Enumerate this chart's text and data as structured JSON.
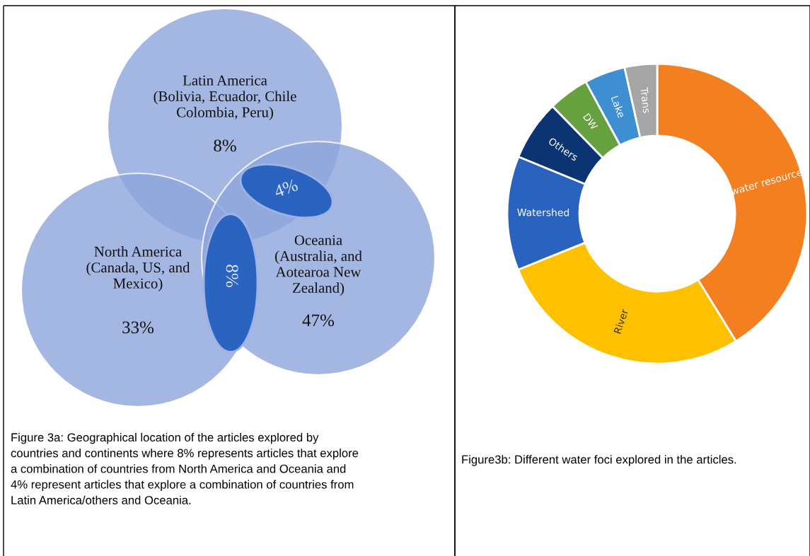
{
  "chart_data": [
    {
      "type": "other",
      "categories": [
        "Latin America\n(Bolivia, Ecuador, Chile\nColombia, Peru)",
        "North America\n(Canada, US, and\nMexico)",
        "Oceania\n(Australia, and\nAotearoa New\nZealand)",
        null,
        null
      ],
      "value_labels": [
        "8%",
        "33%",
        "47%",
        "4%",
        "8%"
      ],
      "colors": [
        "#8ea6dd",
        "#8ea6dd",
        "#8ea6dd",
        "#2b63c1",
        "#2b63c1"
      ],
      "annotations": [
        "Figure 3a: Geographical location of the articles explored by\ncountries and continents where 8% represents articles that explore\na combination of countries from North America and Oceania and\n4% represent articles that explore a combination of countries from\nLatin America/others and Oceania."
      ]
    },
    {
      "type": "donut",
      "categories": [
        "water resource",
        "River",
        "Watershed",
        "Others",
        "DW",
        "Lake",
        "Trans"
      ],
      "values": [
        41.2,
        27.7,
        12.3,
        6.5,
        4.4,
        4.4,
        3.5
      ],
      "colors": [
        "#f47f20",
        "#ffc000",
        "#2a62c0",
        "#0d3472",
        "#67a03f",
        "#3d8fd1",
        "#a5a5a5"
      ],
      "annotations": [
        "Figure3b: Different water foci explored in the articles."
      ]
    }
  ]
}
